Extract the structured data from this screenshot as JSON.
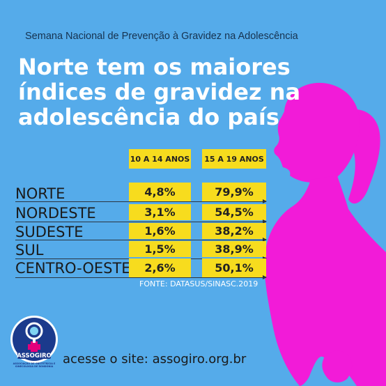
{
  "header": {
    "subtitle": "Semana Nacional de Prevenção à Gravidez na Adolescência",
    "headline_lines": [
      "Norte tem os maiores",
      "índices de gravidez na",
      "adolescência do país"
    ]
  },
  "table": {
    "columns": [
      "10 A 14 ANOS",
      "15 A 19 ANOS"
    ],
    "rows": [
      {
        "region": "NORTE",
        "values": [
          "4,8%",
          "79,9%"
        ]
      },
      {
        "region": "NORDESTE",
        "values": [
          "3,1%",
          "54,5%"
        ]
      },
      {
        "region": "SUDESTE",
        "values": [
          "1,6%",
          "38,2%"
        ]
      },
      {
        "region": "SUL",
        "values": [
          "1,5%",
          "38,9%"
        ]
      },
      {
        "region": "CENTRO-OESTE",
        "values": [
          "2,6%",
          "50,1%"
        ]
      }
    ],
    "source": "FONTE: DATASUS/SINASC.2019"
  },
  "footer": {
    "logo_text": "ASSOGIRO",
    "logo_subtitle": "ASSOCIAÇÃO DE OBSTETRÍCIA E GINECOLOGIA DE RONDÔNIA",
    "site_text": "acesse o site: assogiro.org.br"
  },
  "colors": {
    "background": "#55ABEA",
    "silhouette": "#F21BD8",
    "highlight": "#F7DC1E",
    "headline": "#FFFFFF"
  }
}
